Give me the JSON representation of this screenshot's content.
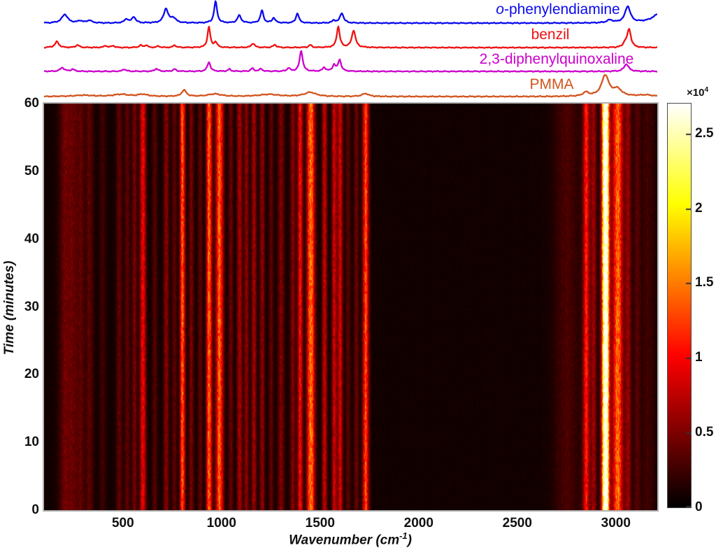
{
  "figure": {
    "background": "#ffffff",
    "axes": {
      "xlabel": {
        "pre": "Wavenumber (cm",
        "sup": "-1",
        "post": ")"
      },
      "ylabel": "Time (minutes)"
    },
    "colorbar_scale": {
      "pre": "×10",
      "sup": "4"
    },
    "legend": [
      {
        "italic_prefix": "o",
        "label": "-phenylendiamine",
        "color": "#0A0AEE"
      },
      {
        "italic_prefix": "",
        "label": "benzil",
        "color": "#EE1111"
      },
      {
        "italic_prefix": "",
        "label": "2,3-diphenylquinoxaline",
        "color": "#CC00CC"
      },
      {
        "italic_prefix": "",
        "label": "PMMA",
        "color": "#D2541E"
      }
    ]
  },
  "chart_data": [
    {
      "type": "line",
      "title": "Reference Raman spectra (stacked traces, arbitrary intensity)",
      "x_range_cm1": [
        100,
        3210
      ],
      "series": [
        {
          "name": "o-phenylendiamine",
          "color": "#0A0AEE",
          "peaks_cm1_height_width": [
            [
              205,
              0.4,
              18
            ],
            [
              283,
              0.1,
              14
            ],
            [
              330,
              0.12,
              14
            ],
            [
              518,
              0.18,
              12
            ],
            [
              555,
              0.28,
              11
            ],
            [
              718,
              0.65,
              13
            ],
            [
              755,
              0.22,
              16
            ],
            [
              970,
              1.0,
              9
            ],
            [
              1090,
              0.35,
              11
            ],
            [
              1205,
              0.58,
              9
            ],
            [
              1265,
              0.24,
              9
            ],
            [
              1385,
              0.45,
              9
            ],
            [
              1570,
              0.12,
              9
            ],
            [
              1610,
              0.46,
              11
            ],
            [
              2970,
              0.12,
              18
            ],
            [
              3060,
              0.75,
              16
            ],
            [
              3230,
              0.5,
              45
            ]
          ]
        },
        {
          "name": "benzil",
          "color": "#EE1111",
          "peaks_cm1_height_width": [
            [
              165,
              0.28,
              12
            ],
            [
              270,
              0.12,
              11
            ],
            [
              412,
              0.09,
              9
            ],
            [
              450,
              0.09,
              9
            ],
            [
              590,
              0.11,
              9
            ],
            [
              618,
              0.11,
              9
            ],
            [
              680,
              0.07,
              9
            ],
            [
              762,
              0.11,
              9
            ],
            [
              936,
              1.0,
              8
            ],
            [
              970,
              0.25,
              9
            ],
            [
              1160,
              0.2,
              10
            ],
            [
              1270,
              0.13,
              10
            ],
            [
              1450,
              0.12,
              9
            ],
            [
              1592,
              1.0,
              9
            ],
            [
              1670,
              0.82,
              11
            ],
            [
              3046,
              0.18,
              10
            ],
            [
              3067,
              0.88,
              11
            ]
          ]
        },
        {
          "name": "2,3-diphenylquinoxaline",
          "color": "#CC00CC",
          "peaks_cm1_height_width": [
            [
              192,
              0.18,
              12
            ],
            [
              245,
              0.1,
              11
            ],
            [
              507,
              0.1,
              11
            ],
            [
              670,
              0.13,
              10
            ],
            [
              762,
              0.1,
              10
            ],
            [
              936,
              0.45,
              9
            ],
            [
              1040,
              0.1,
              9
            ],
            [
              1156,
              0.14,
              9
            ],
            [
              1200,
              0.12,
              9
            ],
            [
              1340,
              0.15,
              9
            ],
            [
              1404,
              1.0,
              9
            ],
            [
              1521,
              0.18,
              9
            ],
            [
              1571,
              0.3,
              9
            ],
            [
              1599,
              0.55,
              9
            ],
            [
              3053,
              0.35,
              14
            ]
          ]
        },
        {
          "name": "PMMA",
          "color": "#D2541E",
          "peaks_cm1_height_width": [
            [
              300,
              0.06,
              60
            ],
            [
              490,
              0.1,
              45
            ],
            [
              600,
              0.1,
              30
            ],
            [
              810,
              0.3,
              14
            ],
            [
              965,
              0.12,
              40
            ],
            [
              1240,
              0.1,
              60
            ],
            [
              1450,
              0.2,
              35
            ],
            [
              1730,
              0.14,
              20
            ],
            [
              2848,
              0.18,
              18
            ],
            [
              2946,
              1.0,
              22
            ],
            [
              3008,
              0.33,
              26
            ],
            [
              3150,
              0.07,
              40
            ]
          ]
        }
      ]
    },
    {
      "type": "heatmap",
      "xlabel": "Wavenumber (cm^-1)",
      "ylabel": "Time (minutes)",
      "x_range_cm1": [
        100,
        3210
      ],
      "y_range_minutes": [
        0,
        60
      ],
      "x_ticks": [
        500,
        1000,
        1500,
        2000,
        2500,
        3000
      ],
      "y_ticks": [
        0,
        10,
        20,
        30,
        40,
        50,
        60
      ],
      "colormap": "hot",
      "colorbar": {
        "ticks": [
          0,
          0.5,
          1,
          1.5,
          2,
          2.5
        ],
        "vmax_1e4": 2.7,
        "scale_label": "×10^4"
      },
      "baseline_1e4": 0.07,
      "bands_cm1_intensity1e4_width": [
        [
          205,
          0.35,
          22
        ],
        [
          245,
          0.25,
          15
        ],
        [
          283,
          0.3,
          16
        ],
        [
          330,
          0.28,
          14
        ],
        [
          395,
          0.18,
          12
        ],
        [
          480,
          0.3,
          11
        ],
        [
          520,
          0.3,
          10
        ],
        [
          557,
          0.38,
          10
        ],
        [
          600,
          0.85,
          11
        ],
        [
          660,
          0.25,
          10
        ],
        [
          718,
          0.45,
          10
        ],
        [
          760,
          0.3,
          9
        ],
        [
          801,
          1.3,
          9
        ],
        [
          845,
          0.4,
          9
        ],
        [
          890,
          0.3,
          9
        ],
        [
          936,
          1.35,
          10
        ],
        [
          988,
          1.3,
          13
        ],
        [
          1045,
          0.35,
          9
        ],
        [
          1090,
          0.55,
          10
        ],
        [
          1125,
          0.45,
          9
        ],
        [
          1163,
          0.55,
          9
        ],
        [
          1205,
          0.5,
          9
        ],
        [
          1250,
          0.3,
          9
        ],
        [
          1300,
          0.42,
          12
        ],
        [
          1360,
          0.45,
          10
        ],
        [
          1397,
          0.95,
          9
        ],
        [
          1452,
          1.4,
          14
        ],
        [
          1521,
          0.7,
          9
        ],
        [
          1571,
          0.75,
          9
        ],
        [
          1600,
          0.8,
          9
        ],
        [
          1640,
          0.3,
          9
        ],
        [
          1682,
          0.35,
          9
        ],
        [
          1730,
          1.2,
          11
        ],
        [
          2750,
          0.22,
          45
        ],
        [
          2848,
          0.95,
          12
        ],
        [
          2885,
          0.55,
          11
        ],
        [
          2946,
          3.0,
          13
        ],
        [
          3008,
          1.35,
          18
        ],
        [
          3060,
          0.5,
          12
        ],
        [
          3105,
          0.25,
          12
        ],
        [
          3160,
          0.18,
          25
        ]
      ],
      "noise": {
        "row_speckle": 0.42,
        "column_jitter": 0.18
      }
    }
  ]
}
